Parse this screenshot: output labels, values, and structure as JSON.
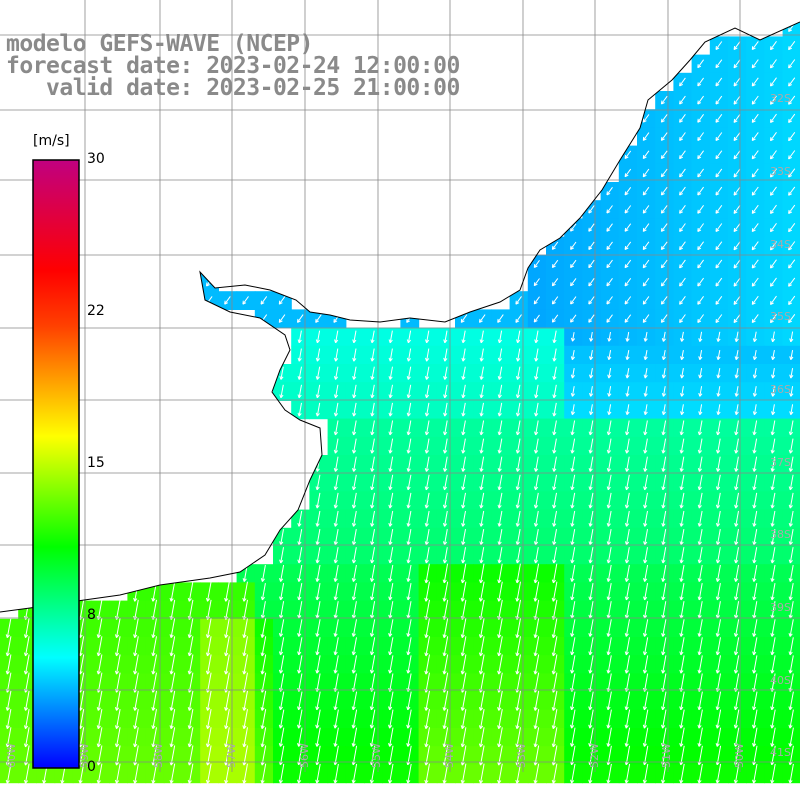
{
  "title": {
    "line1": "modelo GEFS-WAVE (NCEP)",
    "line2": "forecast date: 2023-02-24 12:00:00",
    "line3": "   valid date: 2023-02-25 21:00:00"
  },
  "colorbar": {
    "unit_label": "[m/s]",
    "min": 0,
    "max": 30,
    "ticks": [
      {
        "label": "30",
        "value": 30
      },
      {
        "label": "22",
        "value": 22
      },
      {
        "label": "15",
        "value": 15
      },
      {
        "label": "8",
        "value": 8
      },
      {
        "label": "0",
        "value": 0
      }
    ],
    "color_stops": [
      "#0000ff",
      "#0080ff",
      "#00ffff",
      "#00ff80",
      "#00ff00",
      "#80ff00",
      "#ffff00",
      "#ffa000",
      "#ff4000",
      "#ff0000",
      "#e00040",
      "#c00080"
    ]
  },
  "map": {
    "lon_range": [
      -60,
      -49
    ],
    "lat_range": [
      -41.5,
      -29.5
    ],
    "lat_labels": [
      "32S",
      "33S",
      "34S",
      "35S",
      "36S",
      "37S",
      "38S",
      "39S",
      "40S",
      "41S"
    ],
    "lon_labels": [
      "60W",
      "59W",
      "58W",
      "57W",
      "56W",
      "55W",
      "54W",
      "53W",
      "52W",
      "51W",
      "50W"
    ],
    "grid_color": "#888888",
    "land_color": "#ffffff",
    "coast_color": "#000000",
    "vector_color": "#ffffff",
    "field_description": "wind speed (m/s) with direction vectors",
    "speed_zones": [
      {
        "area": "northeast offshore",
        "speed_ms": 4
      },
      {
        "area": "Rio de la Plata estuary",
        "speed_ms": 5
      },
      {
        "area": "central shelf",
        "speed_ms": 7
      },
      {
        "area": "southern offshore",
        "speed_ms": 10
      },
      {
        "area": "southwest coast",
        "speed_ms": 13
      }
    ]
  }
}
